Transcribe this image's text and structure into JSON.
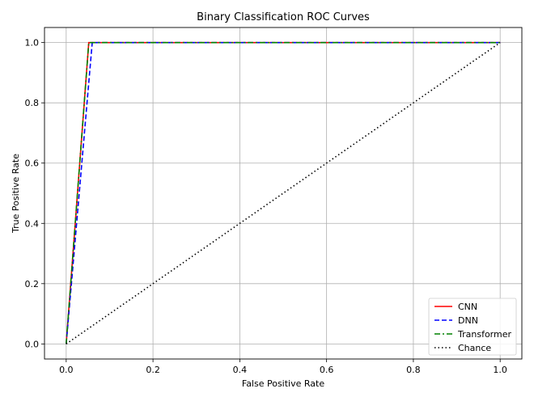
{
  "chart_data": {
    "type": "line",
    "title": "Binary Classification ROC Curves",
    "xlabel": "False Positive Rate",
    "ylabel": "True Positive Rate",
    "xlim": [
      -0.05,
      1.05
    ],
    "ylim": [
      -0.05,
      1.05
    ],
    "xticks": [
      0.0,
      0.2,
      0.4,
      0.6,
      0.8,
      1.0
    ],
    "yticks": [
      0.0,
      0.2,
      0.4,
      0.6,
      0.8,
      1.0
    ],
    "xtick_labels": [
      "0.0",
      "0.2",
      "0.4",
      "0.6",
      "0.8",
      "1.0"
    ],
    "ytick_labels": [
      "0.0",
      "0.2",
      "0.4",
      "0.6",
      "0.8",
      "1.0"
    ],
    "grid": true,
    "legend_position": "bottom-right",
    "series": [
      {
        "name": "CNN",
        "color": "#ff0000",
        "dash": "solid",
        "x": [
          0.0,
          0.052,
          1.0
        ],
        "y": [
          0.0,
          1.0,
          1.0
        ]
      },
      {
        "name": "DNN",
        "color": "#0000ff",
        "dash": "dashed",
        "x": [
          0.0,
          0.06,
          1.0
        ],
        "y": [
          0.0,
          1.0,
          1.0
        ]
      },
      {
        "name": "Transformer",
        "color": "#008000",
        "dash": "dashdot",
        "x": [
          0.0,
          0.052,
          1.0
        ],
        "y": [
          0.0,
          1.0,
          1.0
        ]
      },
      {
        "name": "Chance",
        "color": "#000000",
        "dash": "dotted",
        "x": [
          0.0,
          1.0
        ],
        "y": [
          0.0,
          1.0
        ]
      }
    ]
  }
}
